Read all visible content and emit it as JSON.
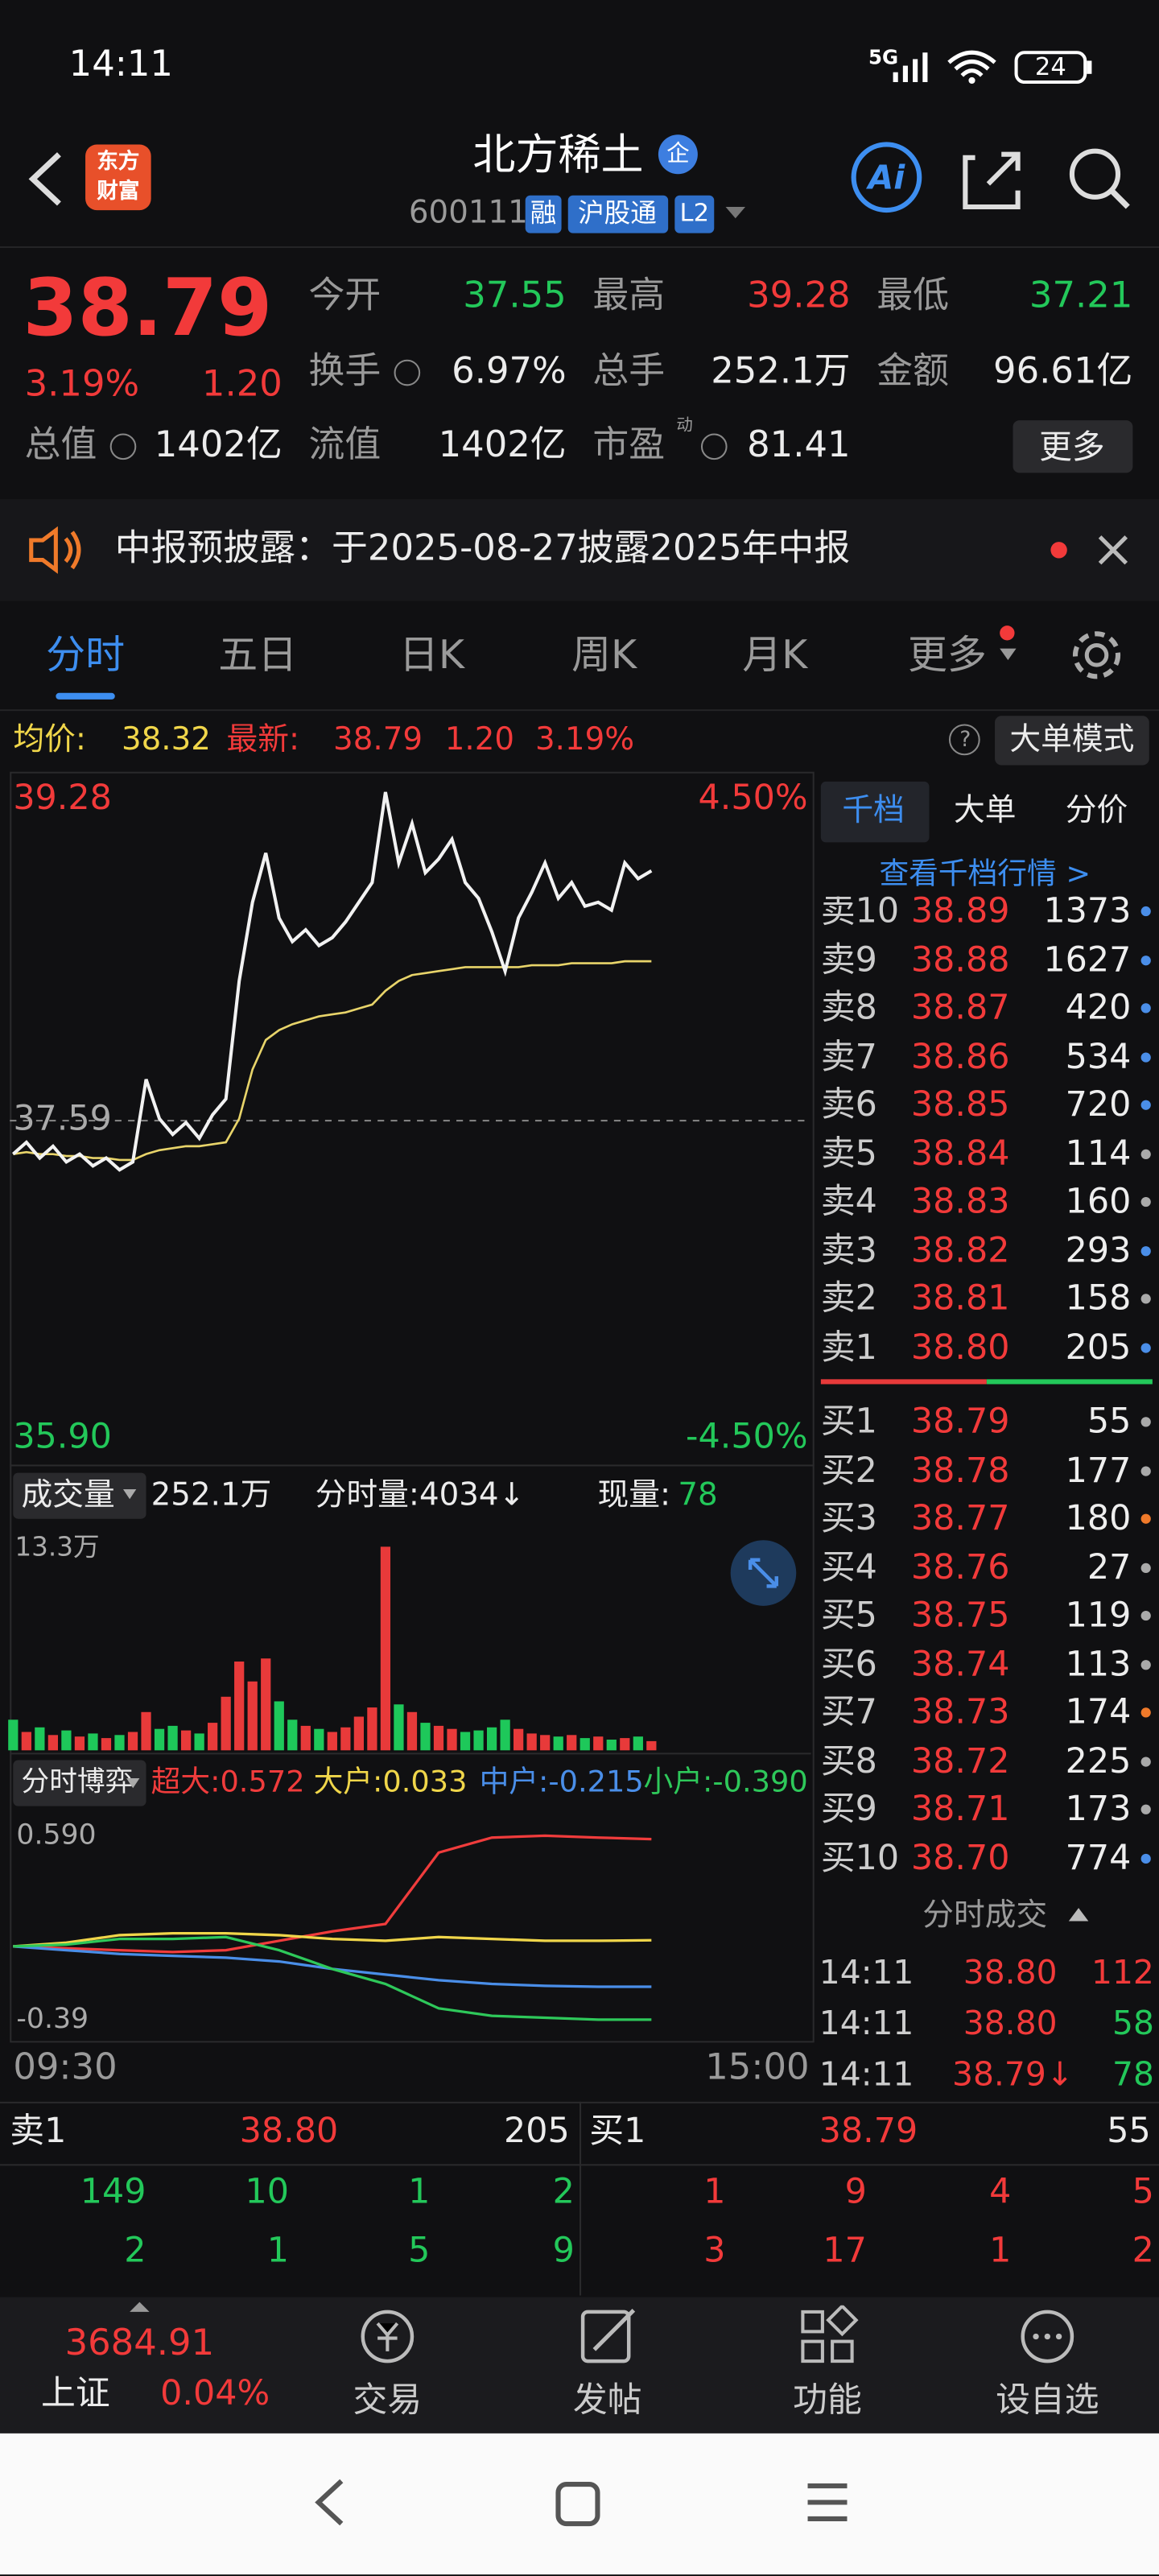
{
  "status": {
    "time": "14:11",
    "network": "5G",
    "battery": "24"
  },
  "header": {
    "logo": [
      "东方",
      "财富"
    ],
    "title": "北方稀土",
    "badge": "企",
    "code": "600111",
    "tags": [
      "融",
      "沪股通",
      "L2"
    ],
    "ai": "Ai"
  },
  "quote": {
    "price": "38.79",
    "change_pct": "3.19%",
    "change": "1.20",
    "fields": [
      {
        "label": "今开",
        "value": "37.55"
      },
      {
        "label": "最高",
        "value": "39.28"
      },
      {
        "label": "最低",
        "value": "37.21"
      },
      {
        "label": "换手",
        "value": "6.97%"
      },
      {
        "label": "总手",
        "value": "252.1万"
      },
      {
        "label": "金额",
        "value": "96.61亿"
      },
      {
        "label": "总值",
        "value": "1402亿"
      },
      {
        "label": "流值",
        "value": "1402亿"
      },
      {
        "label": "市盈",
        "sup": "动",
        "value": "81.41"
      }
    ],
    "more": "更多"
  },
  "notice": "中报预披露：于2025-08-27披露2025年中报",
  "tabs": [
    "分时",
    "五日",
    "日K",
    "周K",
    "月K",
    "更多"
  ],
  "info_bar": {
    "avg_label": "均价:",
    "avg": "38.32",
    "last_label": "最新:",
    "last": "38.79",
    "change": "1.20",
    "change_pct": "3.19%",
    "mode": "大单模式",
    "help": "?"
  },
  "price_chart": {
    "type": "line",
    "ylim": [
      35.9,
      39.28
    ],
    "yticks": [
      {
        "value": 35.9,
        "label": "35.90"
      },
      {
        "value": 37.59,
        "label": "37.59"
      },
      {
        "value": 39.28,
        "label": "39.28"
      }
    ],
    "y2lim": [
      -4.5,
      4.5
    ],
    "y2ticks": [
      {
        "value": -4.5,
        "label": "-4.50%"
      },
      {
        "value": 4.5,
        "label": "4.50%"
      }
    ],
    "x_labels": [
      "09:30",
      "15:00"
    ],
    "series": [
      {
        "color": "#f2f2f2",
        "values": [
          37.42,
          37.48,
          37.4,
          37.46,
          37.38,
          37.42,
          37.36,
          37.4,
          37.34,
          37.38,
          37.8,
          37.6,
          37.52,
          37.58,
          37.5,
          37.62,
          37.7,
          38.3,
          38.7,
          38.95,
          38.62,
          38.5,
          38.56,
          38.48,
          38.52,
          38.6,
          38.7,
          38.8,
          39.26,
          38.9,
          39.1,
          38.85,
          38.92,
          39.02,
          38.8,
          38.72,
          38.55,
          38.35,
          38.62,
          38.75,
          38.9,
          38.72,
          38.8,
          38.68,
          38.7,
          38.66,
          38.9,
          38.82,
          38.86
        ]
      },
      {
        "color": "#e8d46a",
        "values": [
          37.42,
          37.43,
          37.42,
          37.42,
          37.41,
          37.41,
          37.4,
          37.4,
          37.39,
          37.39,
          37.42,
          37.44,
          37.45,
          37.46,
          37.46,
          37.47,
          37.48,
          37.6,
          37.85,
          38.0,
          38.05,
          38.08,
          38.1,
          38.12,
          38.13,
          38.14,
          38.16,
          38.18,
          38.25,
          38.3,
          38.33,
          38.34,
          38.35,
          38.36,
          38.37,
          38.37,
          38.37,
          38.37,
          38.37,
          38.38,
          38.38,
          38.38,
          38.39,
          38.39,
          38.39,
          38.39,
          38.4,
          38.4,
          38.4
        ]
      }
    ]
  },
  "volume_chart": {
    "type": "bar",
    "label": "成交量",
    "total": "252.1万",
    "period_volume": "分时量:4034↓",
    "current_label": "现量:",
    "current": "78",
    "ylim": [
      0,
      13.3
    ],
    "yticks": [
      {
        "value": 13.3,
        "label": "13.3万"
      }
    ],
    "values": [
      2.0,
      1.2,
      1.5,
      1.0,
      1.3,
      0.9,
      1.1,
      0.8,
      1.0,
      1.2,
      2.5,
      1.4,
      1.6,
      1.3,
      1.1,
      1.8,
      3.5,
      5.8,
      4.5,
      6.0,
      3.2,
      2.0,
      1.6,
      1.4,
      1.2,
      1.5,
      2.2,
      2.8,
      13.3,
      3.0,
      2.5,
      1.8,
      1.6,
      1.4,
      1.2,
      1.3,
      1.5,
      2.0,
      1.4,
      1.1,
      1.0,
      0.9,
      1.0,
      0.8,
      0.9,
      0.7,
      0.8,
      0.9,
      0.6
    ],
    "colors": [
      "#1ec85a",
      "#e83a3a",
      "#1ec85a",
      "#e83a3a",
      "#1ec85a",
      "#e83a3a",
      "#1ec85a",
      "#e83a3a",
      "#1ec85a",
      "#e83a3a",
      "#e83a3a",
      "#1ec85a",
      "#1ec85a",
      "#e83a3a",
      "#1ec85a",
      "#e83a3a",
      "#e83a3a",
      "#e83a3a",
      "#e83a3a",
      "#e83a3a",
      "#1ec85a",
      "#1ec85a",
      "#e83a3a",
      "#1ec85a",
      "#e83a3a",
      "#e83a3a",
      "#e83a3a",
      "#e83a3a",
      "#e83a3a",
      "#1ec85a",
      "#e83a3a",
      "#1ec85a",
      "#e83a3a",
      "#e83a3a",
      "#1ec85a",
      "#1ec85a",
      "#1ec85a",
      "#1ec85a",
      "#e83a3a",
      "#e83a3a",
      "#e83a3a",
      "#1ec85a",
      "#e83a3a",
      "#1ec85a",
      "#e83a3a",
      "#1ec85a",
      "#e83a3a",
      "#1ec85a",
      "#e83a3a"
    ]
  },
  "flow_chart": {
    "type": "line",
    "label": "分时博弈",
    "ylim": [
      -0.39,
      0.59
    ],
    "yticks": [
      {
        "value": 0.59,
        "label": "0.590"
      },
      -0.39
    ],
    "step": 4,
    "series": [
      {
        "name": "超大:0.572",
        "color": "#f03c3c",
        "values": [
          0,
          -0.01,
          -0.02,
          -0.03,
          -0.02,
          0.03,
          0.08,
          0.12,
          0.5,
          0.58,
          0.59,
          0.58,
          0.572
        ]
      },
      {
        "name": "大户:0.033",
        "color": "#f0d64a",
        "values": [
          0,
          0.02,
          0.06,
          0.07,
          0.07,
          0.06,
          0.04,
          0.03,
          0.05,
          0.04,
          0.03,
          0.03,
          0.033
        ]
      },
      {
        "name": "中户:-0.215",
        "color": "#4a8ee8",
        "values": [
          0,
          -0.02,
          -0.04,
          -0.05,
          -0.06,
          -0.08,
          -0.12,
          -0.15,
          -0.18,
          -0.2,
          -0.21,
          -0.215,
          -0.215
        ]
      },
      {
        "name": "小户:-0.390",
        "color": "#2ec85a",
        "values": [
          0,
          0.01,
          0.04,
          0.04,
          0.05,
          -0.02,
          -0.12,
          -0.2,
          -0.33,
          -0.37,
          -0.38,
          -0.39,
          -0.39
        ]
      }
    ]
  },
  "order_book": {
    "tabs": [
      "千档",
      "大单",
      "分价"
    ],
    "link": "查看千档行情 >",
    "sells": [
      {
        "label": "卖10",
        "price": "38.89",
        "volume": "1373",
        "dot": "#4a8ee8"
      },
      {
        "label": "卖9",
        "price": "38.88",
        "volume": "1627",
        "dot": "#4a8ee8"
      },
      {
        "label": "卖8",
        "price": "38.87",
        "volume": "420",
        "dot": "#4a8ee8"
      },
      {
        "label": "卖7",
        "price": "38.86",
        "volume": "534",
        "dot": "#4a8ee8"
      },
      {
        "label": "卖6",
        "price": "38.85",
        "volume": "720",
        "dot": "#4a8ee8"
      },
      {
        "label": "卖5",
        "price": "38.84",
        "volume": "114",
        "dot": "#aaaaaa"
      },
      {
        "label": "卖4",
        "price": "38.83",
        "volume": "160",
        "dot": "#aaaaaa"
      },
      {
        "label": "卖3",
        "price": "38.82",
        "volume": "293",
        "dot": "#4a8ee8"
      },
      {
        "label": "卖2",
        "price": "38.81",
        "volume": "158",
        "dot": "#aaaaaa"
      },
      {
        "label": "卖1",
        "price": "38.80",
        "volume": "205",
        "dot": "#4a8ee8"
      }
    ],
    "buys": [
      {
        "label": "买1",
        "price": "38.79",
        "volume": "55",
        "dot": "#aaaaaa"
      },
      {
        "label": "买2",
        "price": "38.78",
        "volume": "177",
        "dot": "#aaaaaa"
      },
      {
        "label": "买3",
        "price": "38.77",
        "volume": "180",
        "dot": "#f07a2a"
      },
      {
        "label": "买4",
        "price": "38.76",
        "volume": "27",
        "dot": "#aaaaaa"
      },
      {
        "label": "买5",
        "price": "38.75",
        "volume": "119",
        "dot": "#aaaaaa"
      },
      {
        "label": "买6",
        "price": "38.74",
        "volume": "113",
        "dot": "#aaaaaa"
      },
      {
        "label": "买7",
        "price": "38.73",
        "volume": "174",
        "dot": "#f07a2a"
      },
      {
        "label": "买8",
        "price": "38.72",
        "volume": "225",
        "dot": "#aaaaaa"
      },
      {
        "label": "买9",
        "price": "38.71",
        "volume": "173",
        "dot": "#aaaaaa"
      },
      {
        "label": "买10",
        "price": "38.70",
        "volume": "774",
        "dot": "#4a8ee8"
      }
    ]
  },
  "trades": {
    "title": "分时成交",
    "rows": [
      {
        "time": "14:11",
        "price": "38.80",
        "volume": "112"
      },
      {
        "time": "14:11",
        "price": "38.80",
        "volume": "58"
      },
      {
        "time": "14:11",
        "price": "38.79↓",
        "volume": "78"
      }
    ]
  },
  "bottom_quote": {
    "sell": {
      "label": "卖1",
      "price": "38.80",
      "volume": "205",
      "rows": [
        [
          "149",
          "10",
          "1",
          "2"
        ],
        [
          "2",
          "1",
          "5",
          "9"
        ]
      ]
    },
    "buy": {
      "label": "买1",
      "price": "38.79",
      "volume": "55",
      "rows": [
        [
          "1",
          "9",
          "4",
          "5"
        ],
        [
          "3",
          "17",
          "1",
          "2"
        ]
      ]
    }
  },
  "nav": {
    "index_value": "3684.91",
    "index_name": "上证",
    "index_pct": "0.04%",
    "items": [
      "交易",
      "发帖",
      "功能",
      "设自选"
    ]
  }
}
